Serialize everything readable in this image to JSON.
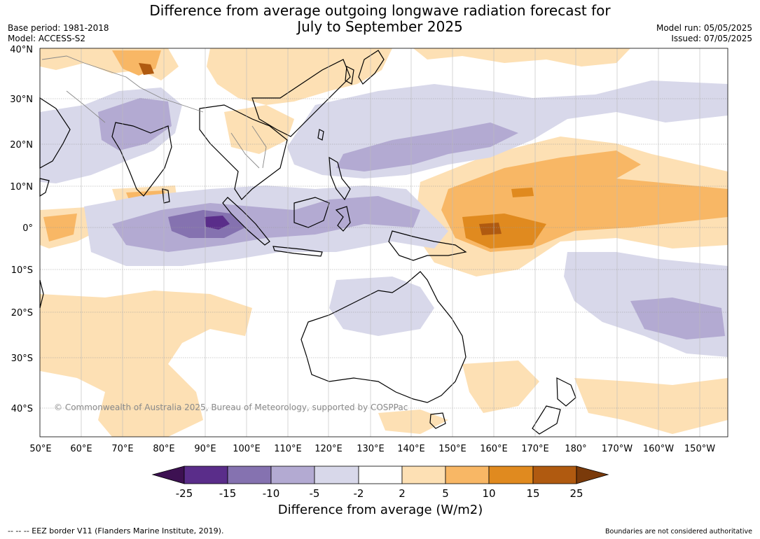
{
  "title": {
    "line1": "Difference from average outgoing longwave radiation forecast for",
    "line2": "July to September 2025"
  },
  "meta_left": {
    "base_period": "Base period: 1981-2018",
    "model": "Model: ACCESS-S2"
  },
  "meta_right": {
    "model_run": "Model run: 05/05/2025",
    "issued": "Issued: 07/05/2025"
  },
  "map": {
    "lat_labels": [
      "40°N",
      "30°N",
      "20°N",
      "10°N",
      "0°",
      "10°S",
      "20°S",
      "30°S",
      "40°S"
    ],
    "lon_labels": [
      "50°E",
      "60°E",
      "70°E",
      "80°E",
      "90°E",
      "100°E",
      "110°E",
      "120°E",
      "130°E",
      "140°E",
      "150°E",
      "160°E",
      "170°E",
      "180°",
      "170°W",
      "160°W",
      "150°W"
    ],
    "copyright": "© Commonwealth of Australia 2025, Bureau of Meteorology, supported by COSPPac"
  },
  "colorbar": {
    "ticks": [
      "-25",
      "-15",
      "-10",
      "-5",
      "-2",
      "2",
      "5",
      "10",
      "15",
      "25"
    ],
    "colors": [
      "#3d1152",
      "#5a2d8a",
      "#8572b0",
      "#b3aad2",
      "#d8d8ea",
      "#ffffff",
      "#fde0b4",
      "#f8b765",
      "#e08a1f",
      "#b05a10",
      "#7a3a0a"
    ],
    "label": "Difference from average (W/m2)"
  },
  "footnotes": {
    "left": "--  --  -- EEZ border V11 (Flanders Marine Institute, 2019).",
    "right": "Boundaries are not considered authoritative"
  }
}
